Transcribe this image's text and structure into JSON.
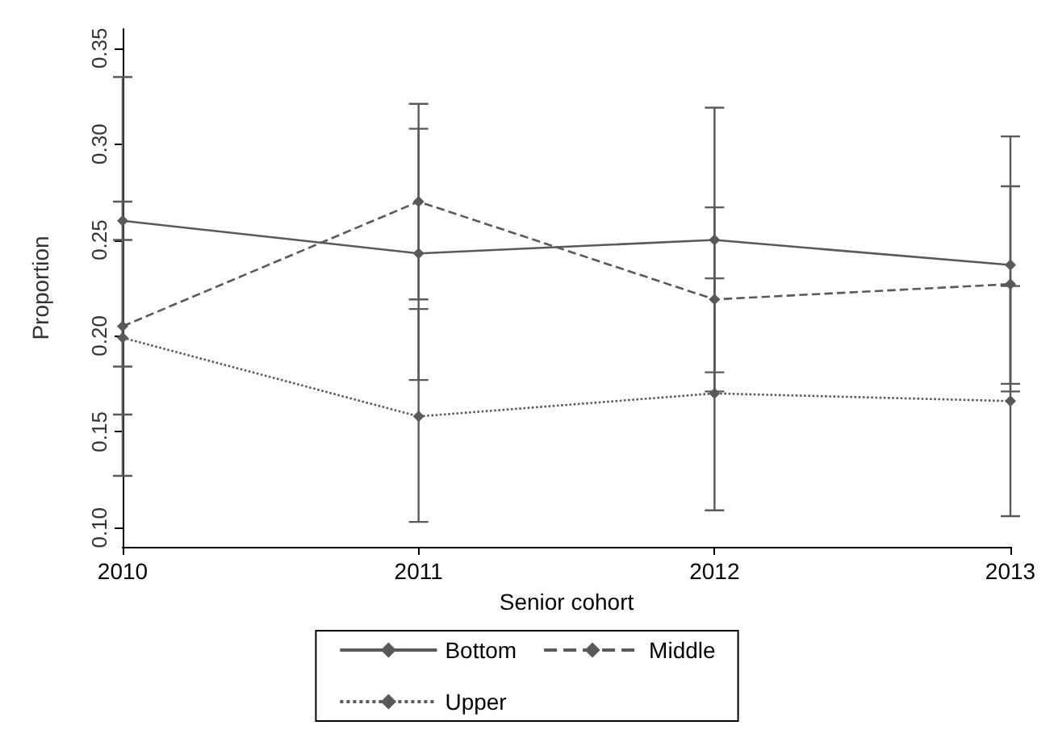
{
  "chart_data": {
    "type": "line",
    "xlabel": "Senior cohort",
    "ylabel": "Proportion",
    "categories": [
      "2010",
      "2011",
      "2012",
      "2013"
    ],
    "series": [
      {
        "name": "Bottom",
        "color": "#595959",
        "line_style": "solid",
        "values": [
          0.26,
          0.243,
          0.25,
          0.237
        ],
        "errors": [
          [
            0.184,
            0.335
          ],
          [
            0.177,
            0.308
          ],
          [
            0.181,
            0.319
          ],
          [
            0.171,
            0.304
          ]
        ]
      },
      {
        "name": "Middle",
        "color": "#595959",
        "line_style": "dashed",
        "values": [
          0.205,
          0.27,
          0.219,
          0.227
        ],
        "errors": [
          [
            0.159,
            0.25
          ],
          [
            0.219,
            0.321
          ],
          [
            0.171,
            0.267
          ],
          [
            0.175,
            0.278
          ]
        ]
      },
      {
        "name": "Upper",
        "color": "#595959",
        "line_style": "dotted",
        "values": [
          0.199,
          0.158,
          0.17,
          0.166
        ],
        "errors": [
          [
            0.127,
            0.27
          ],
          [
            0.103,
            0.214
          ],
          [
            0.109,
            0.23
          ],
          [
            0.106,
            0.226
          ]
        ]
      }
    ],
    "ylim": [
      0.09,
      0.36
    ],
    "yticks": [
      {
        "value": 0.1,
        "label": "0.10"
      },
      {
        "value": 0.15,
        "label": "0.15"
      },
      {
        "value": 0.2,
        "label": "0.20"
      },
      {
        "value": 0.25,
        "label": "0.25"
      },
      {
        "value": 0.3,
        "label": "0.30"
      },
      {
        "value": 0.35,
        "label": "0.35"
      }
    ],
    "marker": "diamond",
    "grid": false,
    "legend": "bottom"
  }
}
